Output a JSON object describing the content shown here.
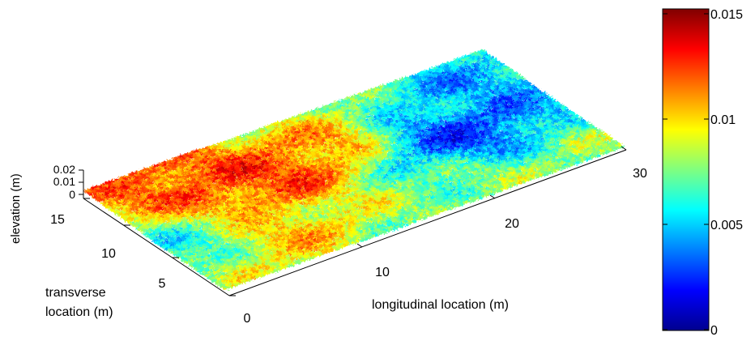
{
  "chart_data": {
    "type": "surface",
    "title": "",
    "axes": {
      "x": {
        "label": "longitudinal location (m)",
        "range": [
          0,
          30
        ],
        "ticks": [
          10,
          20,
          30
        ]
      },
      "y": {
        "label_line1": "transverse",
        "label_line2": "location (m)",
        "range": [
          0,
          18
        ],
        "ticks": [
          0,
          5,
          10,
          15
        ]
      },
      "z": {
        "label": "elevation (m)",
        "range": [
          0,
          0.02
        ],
        "ticks": [
          "0",
          "0.01",
          "0.02"
        ]
      }
    },
    "colorbar": {
      "colormap": "jet",
      "range": [
        0,
        0.015
      ],
      "ticks": [
        "0",
        "0.005",
        "0.01",
        "0.015"
      ]
    },
    "surface_features": [
      {
        "x": 5,
        "y": 16,
        "elevation": 0.013
      },
      {
        "x": 9,
        "y": 11,
        "elevation": 0.013
      },
      {
        "x": 12,
        "y": 13,
        "elevation": 0.012
      },
      {
        "x": 6,
        "y": 4,
        "elevation": 0.011
      },
      {
        "x": 24,
        "y": 9,
        "elevation": 0.002
      },
      {
        "x": 27,
        "y": 15,
        "elevation": 0.004
      },
      {
        "x": 1,
        "y": 6,
        "elevation": 0.005
      }
    ]
  }
}
